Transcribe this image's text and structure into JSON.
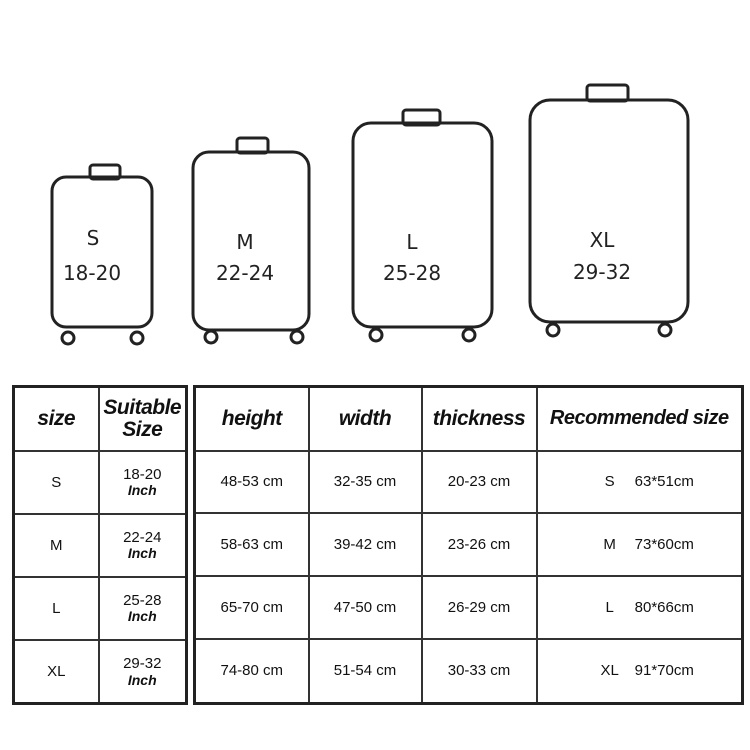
{
  "suitcases": [
    {
      "size": "S",
      "range": "18-20"
    },
    {
      "size": "M",
      "range": "22-24"
    },
    {
      "size": "L",
      "range": "25-28"
    },
    {
      "size": "XL",
      "range": "29-32"
    }
  ],
  "left_table": {
    "headers": [
      "size",
      "Suitable Size"
    ],
    "rows": [
      {
        "size": "S",
        "suitable": "18-20",
        "unit": "Inch"
      },
      {
        "size": "M",
        "suitable": "22-24",
        "unit": "Inch"
      },
      {
        "size": "L",
        "suitable": "25-28",
        "unit": "Inch"
      },
      {
        "size": "XL",
        "suitable": "29-32",
        "unit": "Inch"
      }
    ]
  },
  "right_table": {
    "headers": [
      "height",
      "width",
      "thickness",
      "Recommended size"
    ],
    "rows": [
      {
        "height": "48-53 cm",
        "width": "32-35 cm",
        "thickness": "20-23 cm",
        "rec_size": "S",
        "rec_dims": "63*51cm"
      },
      {
        "height": "58-63 cm",
        "width": "39-42 cm",
        "thickness": "23-26 cm",
        "rec_size": "M",
        "rec_dims": "73*60cm"
      },
      {
        "height": "65-70 cm",
        "width": "47-50 cm",
        "thickness": "26-29 cm",
        "rec_size": "L",
        "rec_dims": "80*66cm"
      },
      {
        "height": "74-80 cm",
        "width": "51-54 cm",
        "thickness": "30-33 cm",
        "rec_size": "XL",
        "rec_dims": "91*70cm"
      }
    ]
  }
}
